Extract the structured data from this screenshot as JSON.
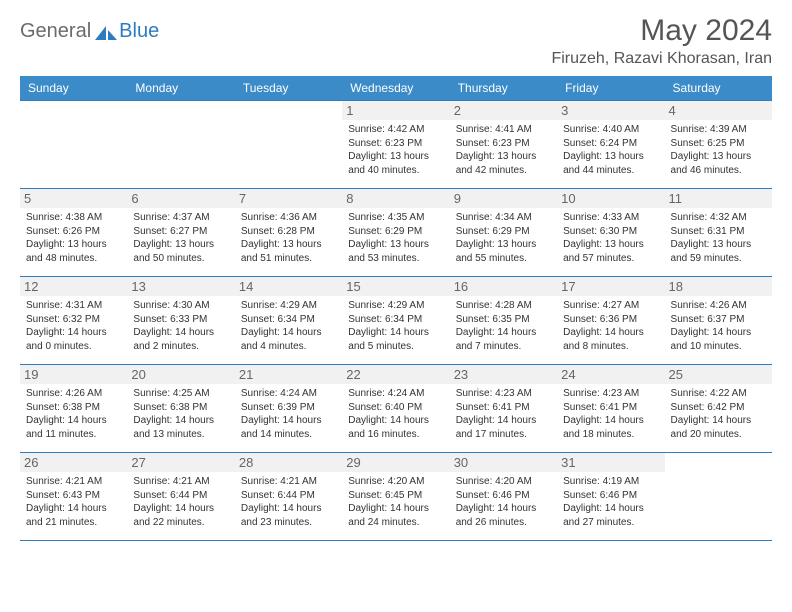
{
  "logo": {
    "part1": "General",
    "part2": "Blue"
  },
  "title": "May 2024",
  "location": "Firuzeh, Razavi Khorasan, Iran",
  "colors": {
    "header_bg": "#3b8bc9",
    "header_text": "#ffffff",
    "border": "#2f7bbf",
    "daynum_bg": "#f1f1f1",
    "daynum_text": "#666666",
    "body_text": "#333333",
    "logo_gray": "#6b6b6b",
    "logo_blue": "#2f7bbf"
  },
  "day_headers": [
    "Sunday",
    "Monday",
    "Tuesday",
    "Wednesday",
    "Thursday",
    "Friday",
    "Saturday"
  ],
  "weeks": [
    [
      null,
      null,
      null,
      {
        "n": "1",
        "sr": "4:42 AM",
        "ss": "6:23 PM",
        "dl": "13 hours and 40 minutes."
      },
      {
        "n": "2",
        "sr": "4:41 AM",
        "ss": "6:23 PM",
        "dl": "13 hours and 42 minutes."
      },
      {
        "n": "3",
        "sr": "4:40 AM",
        "ss": "6:24 PM",
        "dl": "13 hours and 44 minutes."
      },
      {
        "n": "4",
        "sr": "4:39 AM",
        "ss": "6:25 PM",
        "dl": "13 hours and 46 minutes."
      }
    ],
    [
      {
        "n": "5",
        "sr": "4:38 AM",
        "ss": "6:26 PM",
        "dl": "13 hours and 48 minutes."
      },
      {
        "n": "6",
        "sr": "4:37 AM",
        "ss": "6:27 PM",
        "dl": "13 hours and 50 minutes."
      },
      {
        "n": "7",
        "sr": "4:36 AM",
        "ss": "6:28 PM",
        "dl": "13 hours and 51 minutes."
      },
      {
        "n": "8",
        "sr": "4:35 AM",
        "ss": "6:29 PM",
        "dl": "13 hours and 53 minutes."
      },
      {
        "n": "9",
        "sr": "4:34 AM",
        "ss": "6:29 PM",
        "dl": "13 hours and 55 minutes."
      },
      {
        "n": "10",
        "sr": "4:33 AM",
        "ss": "6:30 PM",
        "dl": "13 hours and 57 minutes."
      },
      {
        "n": "11",
        "sr": "4:32 AM",
        "ss": "6:31 PM",
        "dl": "13 hours and 59 minutes."
      }
    ],
    [
      {
        "n": "12",
        "sr": "4:31 AM",
        "ss": "6:32 PM",
        "dl": "14 hours and 0 minutes."
      },
      {
        "n": "13",
        "sr": "4:30 AM",
        "ss": "6:33 PM",
        "dl": "14 hours and 2 minutes."
      },
      {
        "n": "14",
        "sr": "4:29 AM",
        "ss": "6:34 PM",
        "dl": "14 hours and 4 minutes."
      },
      {
        "n": "15",
        "sr": "4:29 AM",
        "ss": "6:34 PM",
        "dl": "14 hours and 5 minutes."
      },
      {
        "n": "16",
        "sr": "4:28 AM",
        "ss": "6:35 PM",
        "dl": "14 hours and 7 minutes."
      },
      {
        "n": "17",
        "sr": "4:27 AM",
        "ss": "6:36 PM",
        "dl": "14 hours and 8 minutes."
      },
      {
        "n": "18",
        "sr": "4:26 AM",
        "ss": "6:37 PM",
        "dl": "14 hours and 10 minutes."
      }
    ],
    [
      {
        "n": "19",
        "sr": "4:26 AM",
        "ss": "6:38 PM",
        "dl": "14 hours and 11 minutes."
      },
      {
        "n": "20",
        "sr": "4:25 AM",
        "ss": "6:38 PM",
        "dl": "14 hours and 13 minutes."
      },
      {
        "n": "21",
        "sr": "4:24 AM",
        "ss": "6:39 PM",
        "dl": "14 hours and 14 minutes."
      },
      {
        "n": "22",
        "sr": "4:24 AM",
        "ss": "6:40 PM",
        "dl": "14 hours and 16 minutes."
      },
      {
        "n": "23",
        "sr": "4:23 AM",
        "ss": "6:41 PM",
        "dl": "14 hours and 17 minutes."
      },
      {
        "n": "24",
        "sr": "4:23 AM",
        "ss": "6:41 PM",
        "dl": "14 hours and 18 minutes."
      },
      {
        "n": "25",
        "sr": "4:22 AM",
        "ss": "6:42 PM",
        "dl": "14 hours and 20 minutes."
      }
    ],
    [
      {
        "n": "26",
        "sr": "4:21 AM",
        "ss": "6:43 PM",
        "dl": "14 hours and 21 minutes."
      },
      {
        "n": "27",
        "sr": "4:21 AM",
        "ss": "6:44 PM",
        "dl": "14 hours and 22 minutes."
      },
      {
        "n": "28",
        "sr": "4:21 AM",
        "ss": "6:44 PM",
        "dl": "14 hours and 23 minutes."
      },
      {
        "n": "29",
        "sr": "4:20 AM",
        "ss": "6:45 PM",
        "dl": "14 hours and 24 minutes."
      },
      {
        "n": "30",
        "sr": "4:20 AM",
        "ss": "6:46 PM",
        "dl": "14 hours and 26 minutes."
      },
      {
        "n": "31",
        "sr": "4:19 AM",
        "ss": "6:46 PM",
        "dl": "14 hours and 27 minutes."
      },
      null
    ]
  ],
  "labels": {
    "sunrise": "Sunrise: ",
    "sunset": "Sunset: ",
    "daylight": "Daylight: "
  }
}
